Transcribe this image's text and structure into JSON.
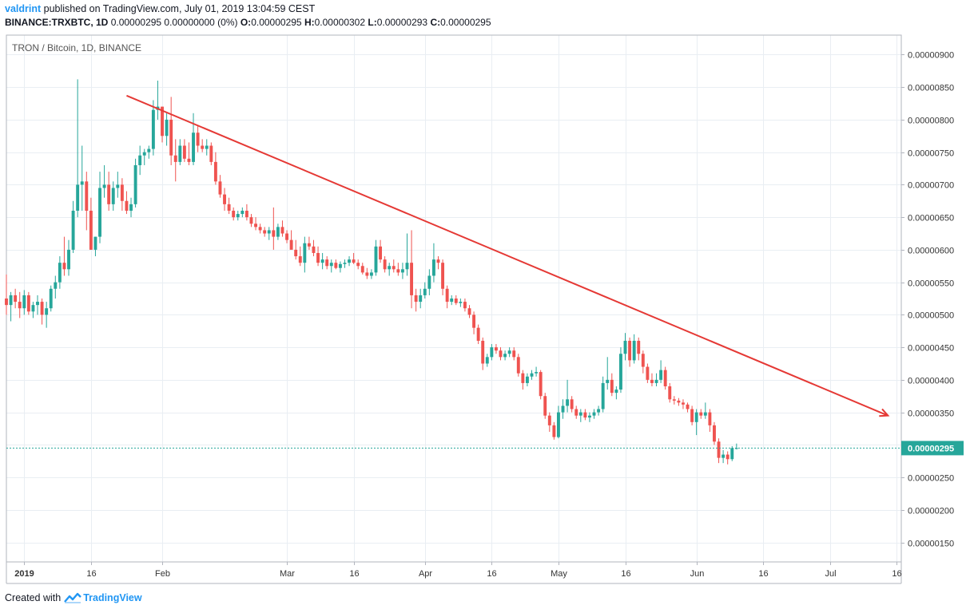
{
  "header": {
    "user": "valdrint",
    "published_text": "published on TradingView.com, July 01, 2019 13:04:59 CEST",
    "symbol": "BINANCE:TRXBTC, 1D",
    "change": "0.00000295 0.00000000 (0%)",
    "o_label": "O:",
    "o_value": "0.00000295",
    "h_label": "H:",
    "h_value": "0.00000302",
    "l_label": "L:",
    "l_value": "0.00000293",
    "c_label": "C:",
    "c_value": "0.00000295"
  },
  "footer": {
    "created_with": "Created with",
    "brand": "TradingView",
    "logo_icon": "tradingview-logo-icon"
  },
  "colors": {
    "up": "#26a69a",
    "down": "#ef5350",
    "trendline": "#e53935",
    "last_price": "#26a69a",
    "grid": "#e9eef3"
  },
  "chart_data": {
    "type": "candlestick",
    "title": "TRON / Bitcoin, 1D, BINANCE",
    "y_ticks": [
      "0.00000150",
      "0.00000200",
      "0.00000250",
      "0.00000300",
      "0.00000350",
      "0.00000400",
      "0.00000450",
      "0.00000500",
      "0.00000550",
      "0.00000600",
      "0.00000650",
      "0.00000700",
      "0.00000750",
      "0.00000800",
      "0.00000850",
      "0.00000900"
    ],
    "y_tick_values": [
      1.5,
      2.0,
      2.5,
      3.0,
      3.5,
      4.0,
      4.5,
      5.0,
      5.5,
      6.0,
      6.5,
      7.0,
      7.5,
      8.0,
      8.5,
      9.0
    ],
    "y_unit_scale": 1e-06,
    "ylim": [
      1.2,
      9.3
    ],
    "x_ticks": [
      {
        "label": "2019",
        "date": "2019-01-01",
        "bold": true
      },
      {
        "label": "16",
        "date": "2019-01-16"
      },
      {
        "label": "Feb",
        "date": "2019-02-01"
      },
      {
        "label": "Mar",
        "date": "2019-03-01"
      },
      {
        "label": "16",
        "date": "2019-03-16"
      },
      {
        "label": "Apr",
        "date": "2019-04-01"
      },
      {
        "label": "16",
        "date": "2019-04-16"
      },
      {
        "label": "May",
        "date": "2019-05-01"
      },
      {
        "label": "16",
        "date": "2019-05-16"
      },
      {
        "label": "Jun",
        "date": "2019-06-01"
      },
      {
        "label": "16",
        "date": "2019-06-16"
      },
      {
        "label": "Jul",
        "date": "2019-07-01"
      },
      {
        "label": "16",
        "date": "2019-07-16"
      }
    ],
    "xlim": [
      "2018-12-28",
      "2019-07-17"
    ],
    "last_price": 2.95,
    "last_price_label": "0.00000295",
    "trendline": {
      "from": {
        "date": "2019-01-24",
        "value": 8.37
      },
      "to": {
        "date": "2019-07-14",
        "value": 3.45
      },
      "arrow": true
    },
    "ohlc_start_date": "2018-12-28",
    "ohlc": [
      [
        5.25,
        5.62,
        5.0,
        5.15
      ],
      [
        5.15,
        5.35,
        4.9,
        5.3
      ],
      [
        5.3,
        5.4,
        5.1,
        5.2
      ],
      [
        5.2,
        5.35,
        4.95,
        5.1
      ],
      [
        5.1,
        5.38,
        5.0,
        5.3
      ],
      [
        5.3,
        5.35,
        5.0,
        5.05
      ],
      [
        5.05,
        5.2,
        4.95,
        5.15
      ],
      [
        5.15,
        5.3,
        5.0,
        5.2
      ],
      [
        5.2,
        5.25,
        4.85,
        5.0
      ],
      [
        5.0,
        5.2,
        4.8,
        5.1
      ],
      [
        5.1,
        5.45,
        5.05,
        5.4
      ],
      [
        5.4,
        5.6,
        5.25,
        5.5
      ],
      [
        5.5,
        5.9,
        5.4,
        5.8
      ],
      [
        5.8,
        6.2,
        5.6,
        5.7
      ],
      [
        5.7,
        6.15,
        5.6,
        6.0
      ],
      [
        6.0,
        6.75,
        5.95,
        6.6
      ],
      [
        6.6,
        8.62,
        6.5,
        7.0
      ],
      [
        7.0,
        7.6,
        6.6,
        7.05
      ],
      [
        7.05,
        7.2,
        6.3,
        6.6
      ],
      [
        6.6,
        6.8,
        6.0,
        6.0
      ],
      [
        6.0,
        6.2,
        5.9,
        6.2
      ],
      [
        6.2,
        7.2,
        6.1,
        6.95
      ],
      [
        6.95,
        7.3,
        6.8,
        7.0
      ],
      [
        7.0,
        7.2,
        6.6,
        6.7
      ],
      [
        6.7,
        7.05,
        6.6,
        6.95
      ],
      [
        6.95,
        7.2,
        6.8,
        7.0
      ],
      [
        7.0,
        7.1,
        6.6,
        6.75
      ],
      [
        6.75,
        6.9,
        6.55,
        6.6
      ],
      [
        6.6,
        6.8,
        6.5,
        6.7
      ],
      [
        6.7,
        7.4,
        6.65,
        7.3
      ],
      [
        7.3,
        7.6,
        7.15,
        7.45
      ],
      [
        7.45,
        7.55,
        7.3,
        7.5
      ],
      [
        7.5,
        7.6,
        7.4,
        7.55
      ],
      [
        7.55,
        8.3,
        7.45,
        8.15
      ],
      [
        8.15,
        8.6,
        8.0,
        8.2
      ],
      [
        8.2,
        8.2,
        7.65,
        7.75
      ],
      [
        7.75,
        8.1,
        7.6,
        8.0
      ],
      [
        8.0,
        8.35,
        7.3,
        7.45
      ],
      [
        7.45,
        7.7,
        7.05,
        7.35
      ],
      [
        7.35,
        7.7,
        7.3,
        7.6
      ],
      [
        7.6,
        7.7,
        7.35,
        7.4
      ],
      [
        7.4,
        7.65,
        7.3,
        7.35
      ],
      [
        7.35,
        8.1,
        7.3,
        7.8
      ],
      [
        7.8,
        7.9,
        7.5,
        7.6
      ],
      [
        7.6,
        7.7,
        7.5,
        7.55
      ],
      [
        7.55,
        7.7,
        7.45,
        7.6
      ],
      [
        7.6,
        7.65,
        7.3,
        7.35
      ],
      [
        7.35,
        7.5,
        7.0,
        7.05
      ],
      [
        7.05,
        7.15,
        6.8,
        6.85
      ],
      [
        6.85,
        6.95,
        6.6,
        6.7
      ],
      [
        6.7,
        6.8,
        6.55,
        6.6
      ],
      [
        6.6,
        6.65,
        6.45,
        6.5
      ],
      [
        6.5,
        6.6,
        6.45,
        6.55
      ],
      [
        6.55,
        6.65,
        6.5,
        6.6
      ],
      [
        6.6,
        6.7,
        6.45,
        6.5
      ],
      [
        6.5,
        6.55,
        6.35,
        6.4
      ],
      [
        6.4,
        6.5,
        6.3,
        6.35
      ],
      [
        6.35,
        6.4,
        6.25,
        6.3
      ],
      [
        6.3,
        6.35,
        6.2,
        6.25
      ],
      [
        6.25,
        6.35,
        6.15,
        6.3
      ],
      [
        6.3,
        6.65,
        6.0,
        6.2
      ],
      [
        6.2,
        6.4,
        6.15,
        6.35
      ],
      [
        6.35,
        6.45,
        6.2,
        6.25
      ],
      [
        6.25,
        6.3,
        6.1,
        6.15
      ],
      [
        6.15,
        6.3,
        6.05,
        6.0
      ],
      [
        6.0,
        6.15,
        5.85,
        5.9
      ],
      [
        5.9,
        6.05,
        5.75,
        5.8
      ],
      [
        5.8,
        6.2,
        5.65,
        6.1
      ],
      [
        6.1,
        6.2,
        6.0,
        6.05
      ],
      [
        6.05,
        6.15,
        5.9,
        5.95
      ],
      [
        5.95,
        6.05,
        5.75,
        5.8
      ],
      [
        5.8,
        5.95,
        5.7,
        5.85
      ],
      [
        5.85,
        5.9,
        5.7,
        5.75
      ],
      [
        5.75,
        5.85,
        5.65,
        5.8
      ],
      [
        5.8,
        5.85,
        5.7,
        5.72
      ],
      [
        5.72,
        5.82,
        5.65,
        5.78
      ],
      [
        5.78,
        5.85,
        5.72,
        5.8
      ],
      [
        5.8,
        5.9,
        5.75,
        5.85
      ],
      [
        5.85,
        5.95,
        5.78,
        5.8
      ],
      [
        5.8,
        5.85,
        5.7,
        5.75
      ],
      [
        5.75,
        5.8,
        5.62,
        5.65
      ],
      [
        5.65,
        5.72,
        5.55,
        5.6
      ],
      [
        5.6,
        5.7,
        5.55,
        5.65
      ],
      [
        5.65,
        6.15,
        5.6,
        6.05
      ],
      [
        6.05,
        6.15,
        5.8,
        5.85
      ],
      [
        5.85,
        5.9,
        5.65,
        5.7
      ],
      [
        5.7,
        5.8,
        5.6,
        5.75
      ],
      [
        5.75,
        5.85,
        5.65,
        5.7
      ],
      [
        5.7,
        5.8,
        5.6,
        5.65
      ],
      [
        5.65,
        5.8,
        5.55,
        5.7
      ],
      [
        5.7,
        6.25,
        5.6,
        5.8
      ],
      [
        5.8,
        6.3,
        5.1,
        5.3
      ],
      [
        5.3,
        5.4,
        5.05,
        5.2
      ],
      [
        5.2,
        5.4,
        5.1,
        5.3
      ],
      [
        5.3,
        5.5,
        5.25,
        5.4
      ],
      [
        5.4,
        5.7,
        5.3,
        5.6
      ],
      [
        5.6,
        6.1,
        5.5,
        5.85
      ],
      [
        5.85,
        5.9,
        5.7,
        5.8
      ],
      [
        5.8,
        5.85,
        5.3,
        5.4
      ],
      [
        5.4,
        5.45,
        5.1,
        5.2
      ],
      [
        5.2,
        5.3,
        5.15,
        5.25
      ],
      [
        5.25,
        5.3,
        5.15,
        5.18
      ],
      [
        5.18,
        5.25,
        5.12,
        5.2
      ],
      [
        5.2,
        5.25,
        5.05,
        5.1
      ],
      [
        5.1,
        5.15,
        4.95,
        5.0
      ],
      [
        5.0,
        5.05,
        4.7,
        4.8
      ],
      [
        4.8,
        4.85,
        4.55,
        4.6
      ],
      [
        4.6,
        4.65,
        4.15,
        4.25
      ],
      [
        4.25,
        4.4,
        4.2,
        4.35
      ],
      [
        4.35,
        4.55,
        4.3,
        4.5
      ],
      [
        4.5,
        4.55,
        4.4,
        4.45
      ],
      [
        4.45,
        4.5,
        4.3,
        4.35
      ],
      [
        4.35,
        4.45,
        4.3,
        4.4
      ],
      [
        4.4,
        4.5,
        4.35,
        4.45
      ],
      [
        4.45,
        4.5,
        4.3,
        4.35
      ],
      [
        4.35,
        4.4,
        4.05,
        4.1
      ],
      [
        4.1,
        4.15,
        3.85,
        3.95
      ],
      [
        3.95,
        4.1,
        3.9,
        4.05
      ],
      [
        4.05,
        4.15,
        4.0,
        4.1
      ],
      [
        4.1,
        4.2,
        4.05,
        4.12
      ],
      [
        4.12,
        4.15,
        3.7,
        3.75
      ],
      [
        3.75,
        3.8,
        3.4,
        3.45
      ],
      [
        3.45,
        3.5,
        3.2,
        3.3
      ],
      [
        3.3,
        3.35,
        3.08,
        3.12
      ],
      [
        3.12,
        3.6,
        3.1,
        3.5
      ],
      [
        3.5,
        3.7,
        3.4,
        3.6
      ],
      [
        3.6,
        4.0,
        3.5,
        3.7
      ],
      [
        3.7,
        3.75,
        3.5,
        3.55
      ],
      [
        3.55,
        3.6,
        3.4,
        3.45
      ],
      [
        3.45,
        3.55,
        3.35,
        3.5
      ],
      [
        3.5,
        3.55,
        3.38,
        3.42
      ],
      [
        3.42,
        3.5,
        3.35,
        3.45
      ],
      [
        3.45,
        3.55,
        3.4,
        3.5
      ],
      [
        3.5,
        3.6,
        3.45,
        3.55
      ],
      [
        3.55,
        4.05,
        3.5,
        3.95
      ],
      [
        3.95,
        4.35,
        3.85,
        4.0
      ],
      [
        4.0,
        4.1,
        3.75,
        3.8
      ],
      [
        3.8,
        3.9,
        3.7,
        3.85
      ],
      [
        3.85,
        4.5,
        3.8,
        4.4
      ],
      [
        4.4,
        4.72,
        4.3,
        4.6
      ],
      [
        4.6,
        4.65,
        4.2,
        4.3
      ],
      [
        4.3,
        4.7,
        4.25,
        4.6
      ],
      [
        4.6,
        4.65,
        4.3,
        4.4
      ],
      [
        4.4,
        4.45,
        4.1,
        4.2
      ],
      [
        4.2,
        4.25,
        3.95,
        4.0
      ],
      [
        4.0,
        4.1,
        3.9,
        3.95
      ],
      [
        3.95,
        4.1,
        3.9,
        4.0
      ],
      [
        4.0,
        4.3,
        3.95,
        4.15
      ],
      [
        4.15,
        4.2,
        3.85,
        3.9
      ],
      [
        3.9,
        3.95,
        3.65,
        3.7
      ],
      [
        3.7,
        3.75,
        3.62,
        3.68
      ],
      [
        3.68,
        3.72,
        3.6,
        3.65
      ],
      [
        3.65,
        3.7,
        3.55,
        3.62
      ],
      [
        3.62,
        3.65,
        3.5,
        3.55
      ],
      [
        3.55,
        3.6,
        3.3,
        3.35
      ],
      [
        3.35,
        3.55,
        3.15,
        3.5
      ],
      [
        3.5,
        3.55,
        3.4,
        3.45
      ],
      [
        3.45,
        3.65,
        3.4,
        3.5
      ],
      [
        3.5,
        3.55,
        3.2,
        3.3
      ],
      [
        3.3,
        3.35,
        3.0,
        3.05
      ],
      [
        3.05,
        3.1,
        2.72,
        2.8
      ],
      [
        2.8,
        2.92,
        2.72,
        2.85
      ],
      [
        2.85,
        2.9,
        2.7,
        2.78
      ],
      [
        2.78,
        2.98,
        2.75,
        2.95
      ],
      [
        2.95,
        3.02,
        2.93,
        2.95
      ]
    ]
  }
}
